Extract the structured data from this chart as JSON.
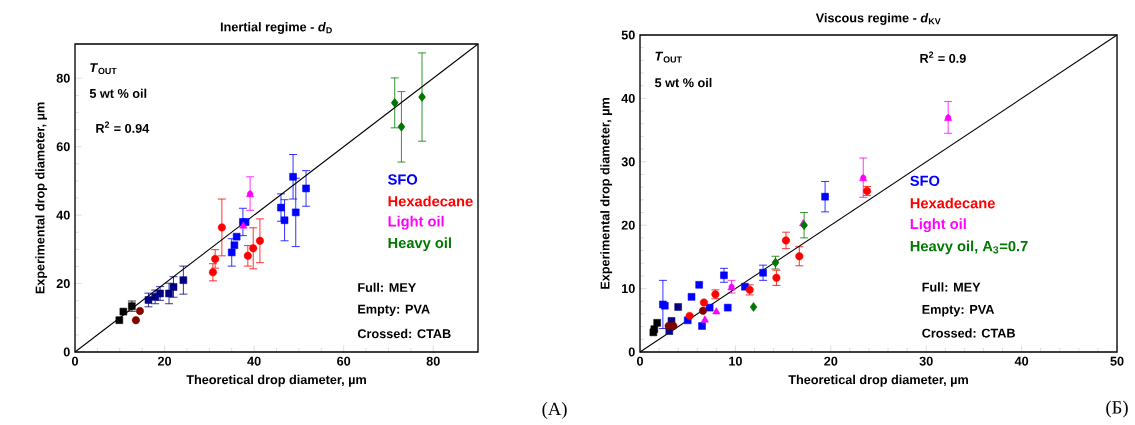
{
  "chart_data": [
    {
      "type": "scatter",
      "title": "Inertial regime - *d*$_{D}$",
      "xlabel": "Theoretical drop diameter, µm",
      "ylabel": "Experimental drop diameter, µm",
      "xlim": [
        0,
        90
      ],
      "ylim": [
        0,
        90
      ],
      "xticks": [
        0,
        20,
        40,
        60,
        80
      ],
      "yticks": [
        0,
        20,
        40,
        60,
        80
      ],
      "legend": "right",
      "annotations": [
        "*T*$_{OUT}$",
        "5 wt % oil",
        "R$^{2}$ = 0.94",
        "Full: MEY",
        "Empty: PVA",
        "Crossed: CTAB",
        "(A)"
      ],
      "series": [
        {
          "name": "SFO",
          "color": "#0000ff",
          "marker": "square",
          "x": [
            35,
            35.6,
            36.1,
            37.5,
            38.1,
            46.0,
            46.8,
            48.7,
            49.3,
            51.6
          ],
          "values": [
            29.1,
            31.2,
            33.7,
            38,
            38,
            42.2,
            38.5,
            51.2,
            40.8,
            47.8
          ],
          "errors": [
            4,
            null,
            null,
            4,
            null,
            4,
            6,
            6.5,
            10,
            5.2
          ]
        },
        {
          "name": "Hexadecane",
          "color": "#ff0000",
          "marker": "circle",
          "x": [
            30.8,
            31.3,
            32.8,
            38.6,
            39.8,
            41.3
          ],
          "values": [
            23.3,
            27.2,
            36.4,
            28.1,
            30.3,
            32.5
          ],
          "errors": [
            2.5,
            2.7,
            8.3,
            3,
            6,
            6.4
          ]
        },
        {
          "name": "Light oil",
          "color": "#ff00ff",
          "marker": "triangle",
          "x": [
            37.6,
            39.1
          ],
          "values": [
            37.1,
            46.3
          ],
          "errors": [
            null,
            4.9
          ]
        },
        {
          "name": "Heavy oil",
          "color": "#007700",
          "marker": "diamond",
          "x": [
            71.4,
            72.9,
            77.5
          ],
          "values": [
            72.8,
            65.8,
            74.5
          ],
          "errors": [
            7.3,
            10.3,
            12.9
          ]
        },
        {
          "color": "#000080",
          "marker": "square",
          "x": [
            16.4,
            17.9,
            19,
            21,
            22,
            24.2
          ],
          "values": [
            15.2,
            16.1,
            17.1,
            17.1,
            19,
            21
          ],
          "errors": [
            2,
            2,
            2,
            3,
            3,
            4.1
          ]
        },
        {
          "color": "#800000",
          "marker": "circle",
          "x": [
            13.6,
            14.5
          ],
          "values": [
            9.3,
            12
          ]
        },
        {
          "color": "#000000",
          "marker": "square",
          "x": [
            9.9,
            10.8,
            12.7
          ],
          "values": [
            9.3,
            11.8,
            13.4
          ],
          "errors": [
            null,
            null,
            1.5
          ]
        },
        {
          "type": "line",
          "color": "#000000",
          "marker": "none",
          "x": [
            0,
            90
          ],
          "values": [
            0,
            90
          ]
        }
      ]
    },
    {
      "type": "scatter",
      "title": "Viscous regime - *d*$_{KV}$",
      "xlabel": "Theoretical drop diameter, µm",
      "ylabel": "Experimental drop diameter, µm",
      "xlim": [
        0,
        50
      ],
      "ylim": [
        0,
        50
      ],
      "xticks": [
        0,
        10,
        20,
        30,
        40,
        50
      ],
      "yticks": [
        0,
        10,
        20,
        30,
        40,
        50
      ],
      "legend": "right",
      "annotations": [
        "*T*$_{OUT}$",
        "5 wt % oil",
        "R$^{2}$ = 0.9",
        "Full: MEY",
        "Empty: PVA",
        "Crossed: CTAB",
        "(Б)"
      ],
      "series": [
        {
          "name": "SFO",
          "color": "#0000ff",
          "marker": "square",
          "x": [
            2.4,
            2.6,
            5.0,
            5.4,
            6.2,
            7.3,
            6.5,
            8.8,
            9.2,
            11.0,
            12.9,
            19.4
          ],
          "values": [
            7.5,
            7.3,
            5.0,
            8.7,
            10.6,
            7.0,
            4.1,
            12.1,
            7.0,
            10.3,
            12.5,
            24.5
          ],
          "errors": [
            3.8,
            null,
            null,
            null,
            null,
            null,
            null,
            1.1,
            null,
            null,
            1.2,
            2.4
          ]
        },
        {
          "name": "Hexadecane",
          "color": "#ff0000",
          "marker": "circle",
          "x": [
            5.2,
            6.7,
            7.9,
            15.3,
            11.5,
            14.3,
            16.7,
            23.8
          ],
          "values": [
            5.7,
            7.8,
            9.1,
            17.6,
            9.8,
            11.7,
            15.1,
            25.4
          ],
          "errors": [
            null,
            null,
            0.7,
            1.3,
            0.8,
            1.2,
            1.5,
            0.7
          ]
        },
        {
          "name": "Light oil",
          "color": "#ff00ff",
          "marker": "triangle",
          "x": [
            6.8,
            8.0,
            9.6,
            17.1,
            23.4,
            32.3
          ],
          "values": [
            5.2,
            6.5,
            10.3,
            20.4,
            27.5,
            37
          ],
          "errors": [
            null,
            null,
            1,
            null,
            3.1,
            2.5
          ]
        },
        {
          "name": "Heavy oil, A$_{3}$=0.7",
          "color": "#007700",
          "marker": "diamond",
          "x": [
            11.9,
            14.2,
            17.2
          ],
          "values": [
            7.1,
            14.1,
            20.0
          ],
          "errors": [
            null,
            1,
            2
          ]
        },
        {
          "color": "#000080",
          "marker": "square",
          "x": [
            3.07,
            3.3,
            4.0
          ],
          "values": [
            3.3,
            4.9,
            7.1
          ]
        },
        {
          "color": "#800000",
          "marker": "circle",
          "x": [
            3.0,
            3.5,
            6.6
          ],
          "values": [
            4.1,
            4.1,
            6.5
          ]
        },
        {
          "color": "#000000",
          "marker": "square",
          "x": [
            1.5,
            1.8,
            1.4
          ],
          "values": [
            3.6,
            4.6,
            3.1
          ]
        },
        {
          "type": "line",
          "color": "#000000",
          "marker": "none",
          "x": [
            0,
            50
          ],
          "values": [
            0,
            50
          ]
        }
      ]
    }
  ]
}
